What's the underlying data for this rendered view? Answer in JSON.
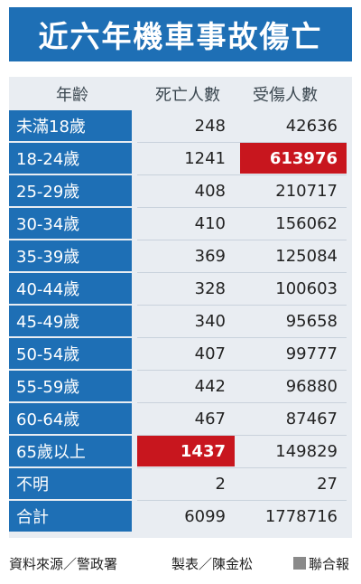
{
  "title": "近六年機車事故傷亡",
  "chart_data": {
    "type": "table",
    "headers": [
      "年齡",
      "死亡人數",
      "受傷人數"
    ],
    "rows": [
      {
        "age": "未滿18歲",
        "deaths": 248,
        "injured": 42636
      },
      {
        "age": "18-24歲",
        "deaths": 1241,
        "injured": 613976,
        "highlight": "injured"
      },
      {
        "age": "25-29歲",
        "deaths": 408,
        "injured": 210717
      },
      {
        "age": "30-34歲",
        "deaths": 410,
        "injured": 156062
      },
      {
        "age": "35-39歲",
        "deaths": 369,
        "injured": 125084
      },
      {
        "age": "40-44歲",
        "deaths": 328,
        "injured": 100603
      },
      {
        "age": "45-49歲",
        "deaths": 340,
        "injured": 95658
      },
      {
        "age": "50-54歲",
        "deaths": 407,
        "injured": 99777
      },
      {
        "age": "55-59歲",
        "deaths": 442,
        "injured": 96880
      },
      {
        "age": "60-64歲",
        "deaths": 467,
        "injured": 87467
      },
      {
        "age": "65歲以上",
        "deaths": 1437,
        "injured": 149829,
        "highlight": "deaths"
      },
      {
        "age": "不明",
        "deaths": 2,
        "injured": 27
      },
      {
        "age": "合計",
        "deaths": 6099,
        "injured": 1778716
      }
    ]
  },
  "footer": {
    "source": "資料來源／警政署",
    "maker": "製表／陳金松",
    "publisher": "聯合報"
  },
  "colors": {
    "accent": "#1e6fb5",
    "highlight": "#c8161e",
    "table_bg": "#e9edf2"
  }
}
